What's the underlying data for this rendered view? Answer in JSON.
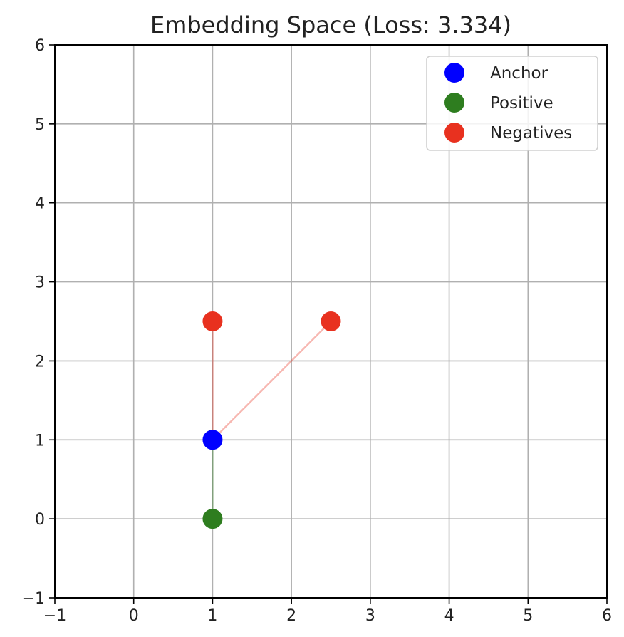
{
  "chart_data": {
    "type": "scatter",
    "title": "Embedding Space (Loss: 3.334)",
    "xlabel": "",
    "ylabel": "",
    "xlim": [
      -1,
      6
    ],
    "ylim": [
      -1,
      6
    ],
    "xticks": [
      -1,
      0,
      1,
      2,
      3,
      4,
      5,
      6
    ],
    "yticks": [
      -1,
      0,
      1,
      2,
      3,
      4,
      5,
      6
    ],
    "x_tick_labels": [
      "−1",
      "0",
      "1",
      "2",
      "3",
      "4",
      "5",
      "6"
    ],
    "y_tick_labels": [
      "−1",
      "0",
      "1",
      "2",
      "3",
      "4",
      "5",
      "6"
    ],
    "grid": true,
    "legend_position": "top-right",
    "series": [
      {
        "name": "Anchor",
        "color": "#0000ff",
        "points": [
          {
            "x": 1,
            "y": 1
          }
        ]
      },
      {
        "name": "Positive",
        "color": "#2e7d1f",
        "points": [
          {
            "x": 1,
            "y": 0
          }
        ]
      },
      {
        "name": "Negatives",
        "color": "#e8311f",
        "points": [
          {
            "x": 1,
            "y": 2.5
          },
          {
            "x": 2.5,
            "y": 2.5
          }
        ]
      }
    ],
    "connector_lines": [
      {
        "from": [
          1,
          1
        ],
        "to": [
          1,
          0
        ],
        "color": "#2e7d1f"
      },
      {
        "from": [
          1,
          1
        ],
        "to": [
          1,
          2.5
        ],
        "color": "#e8311f"
      },
      {
        "from": [
          1,
          1
        ],
        "to": [
          2.5,
          2.5
        ],
        "color": "#e8311f"
      }
    ]
  }
}
